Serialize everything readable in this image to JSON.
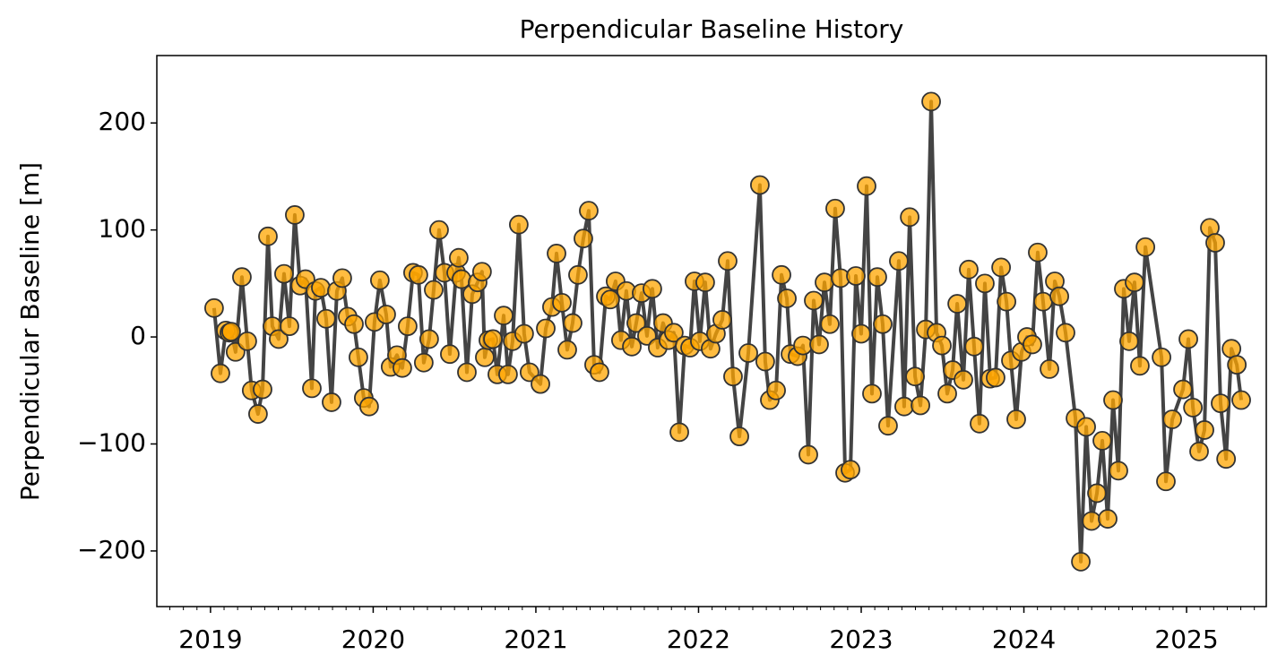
{
  "chart_data": {
    "type": "line",
    "title": "Perpendicular Baseline History",
    "y_label": "Perpendicular Baseline [m]",
    "x": [
      2019.022,
      2019.061,
      2019.094,
      2019.116,
      2019.127,
      2019.154,
      2019.193,
      2019.226,
      2019.253,
      2019.292,
      2019.32,
      2019.353,
      2019.38,
      2019.419,
      2019.452,
      2019.485,
      2019.518,
      2019.551,
      2019.584,
      2019.623,
      2019.645,
      2019.678,
      2019.711,
      2019.744,
      2019.777,
      2019.81,
      2019.843,
      2019.882,
      2019.909,
      2019.942,
      2019.975,
      2020.008,
      2020.041,
      2020.08,
      2020.107,
      2020.146,
      2020.179,
      2020.212,
      2020.245,
      2020.278,
      2020.311,
      2020.344,
      2020.372,
      2020.405,
      2020.438,
      2020.471,
      2020.51,
      2020.526,
      2020.543,
      2020.576,
      2020.609,
      2020.642,
      2020.669,
      2020.686,
      2020.708,
      2020.736,
      2020.763,
      2020.802,
      2020.829,
      2020.857,
      2020.895,
      2020.928,
      2020.961,
      2021.028,
      2021.061,
      2021.099,
      2021.127,
      2021.16,
      2021.193,
      2021.226,
      2021.259,
      2021.292,
      2021.325,
      2021.358,
      2021.391,
      2021.43,
      2021.457,
      2021.49,
      2021.523,
      2021.556,
      2021.59,
      2021.617,
      2021.65,
      2021.683,
      2021.716,
      2021.749,
      2021.782,
      2021.815,
      2021.848,
      2021.882,
      2021.915,
      2021.948,
      2021.975,
      2022.008,
      2022.041,
      2022.074,
      2022.107,
      2022.146,
      2022.179,
      2022.212,
      2022.251,
      2022.306,
      2022.377,
      2022.41,
      2022.438,
      2022.477,
      2022.51,
      2022.543,
      2022.565,
      2022.609,
      2022.642,
      2022.675,
      2022.708,
      2022.741,
      2022.774,
      2022.807,
      2022.84,
      2022.873,
      2022.901,
      2022.934,
      2022.967,
      2023.0,
      2023.033,
      2023.066,
      2023.099,
      2023.132,
      2023.165,
      2023.231,
      2023.264,
      2023.298,
      2023.331,
      2023.364,
      2023.397,
      2023.43,
      2023.463,
      2023.496,
      2023.529,
      2023.562,
      2023.59,
      2023.628,
      2023.661,
      2023.694,
      2023.727,
      2023.76,
      2023.793,
      2023.826,
      2023.86,
      2023.893,
      2023.92,
      2023.953,
      2023.986,
      2024.019,
      2024.052,
      2024.085,
      2024.118,
      2024.157,
      2024.19,
      2024.218,
      2024.256,
      2024.317,
      2024.35,
      2024.383,
      2024.416,
      2024.449,
      2024.482,
      2024.515,
      2024.548,
      2024.581,
      2024.614,
      2024.647,
      2024.68,
      2024.713,
      2024.747,
      2024.846,
      2024.873,
      2024.912,
      2024.978,
      2025.011,
      2025.039,
      2025.077,
      2025.11,
      2025.143,
      2025.176,
      2025.209,
      2025.243,
      2025.276,
      2025.309,
      2025.336
    ],
    "series": [
      {
        "color": "#ffa500",
        "line_color": "#444444",
        "values": [
          27,
          -34,
          6,
          4,
          5,
          -14,
          56,
          -4,
          -50,
          -72,
          -49,
          94,
          10,
          -2,
          59,
          10,
          114,
          48,
          54,
          -48,
          43,
          46,
          17,
          -61,
          43,
          55,
          19,
          12,
          -19,
          -57,
          -65,
          14,
          53,
          21,
          -28,
          -17,
          -29,
          10,
          60,
          58,
          -24,
          -2,
          44,
          100,
          60,
          -16,
          60,
          74,
          54,
          -33,
          40,
          51,
          61,
          -19,
          -3,
          -2,
          -35,
          20,
          -35,
          -4,
          105,
          3,
          -33,
          -44,
          8,
          28,
          78,
          32,
          -12,
          13,
          58,
          92,
          118,
          -26,
          -33,
          38,
          35,
          52,
          -3,
          43,
          -9,
          13,
          41,
          1,
          45,
          -10,
          13,
          -3,
          4,
          -89,
          -8,
          -10,
          52,
          -4,
          51,
          -11,
          3,
          16,
          71,
          -37,
          -93,
          -15,
          142,
          -23,
          -59,
          -50,
          58,
          36,
          -16,
          -18,
          -8,
          -110,
          34,
          -7,
          51,
          12,
          120,
          55,
          -127,
          -124,
          57,
          3,
          141,
          -53,
          56,
          12,
          -83,
          71,
          -65,
          112,
          -37,
          -64,
          7,
          220,
          4,
          -8,
          -53,
          -31,
          31,
          -40,
          63,
          -9,
          -81,
          50,
          -39,
          -38,
          65,
          33,
          -22,
          -77,
          -14,
          0,
          -7,
          79,
          33,
          -30,
          52,
          38,
          4,
          -76,
          -210,
          -84,
          -172,
          -146,
          -97,
          -170,
          -59,
          -125,
          45,
          -4,
          51,
          -27,
          84,
          -19,
          -135,
          -77,
          -49,
          -2,
          -66,
          -107,
          -87,
          102,
          88,
          -62,
          -114,
          -11,
          -26,
          -59
        ]
      }
    ],
    "xlim": [
      2018.67,
      2025.49
    ],
    "xticks": [
      2019,
      2020,
      2021,
      2022,
      2023,
      2024,
      2025
    ],
    "ylim": [
      -252,
      263
    ],
    "yticks": [
      {
        "value": -200,
        "label": "−200"
      },
      {
        "value": -100,
        "label": "−100"
      },
      0,
      100,
      200
    ]
  }
}
